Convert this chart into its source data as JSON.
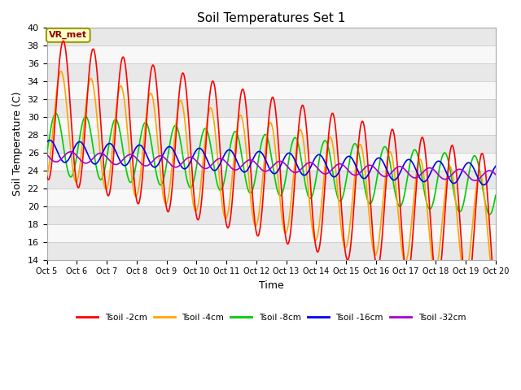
{
  "title": "Soil Temperatures Set 1",
  "xlabel": "Time",
  "ylabel": "Soil Temperature (C)",
  "ylim": [
    14,
    40
  ],
  "annotation_text": "VR_met",
  "x_tick_labels": [
    "Oct 5",
    "Oct 6",
    "Oct 7",
    "Oct 8",
    "Oct 9",
    "Oct 10",
    "Oct 11",
    "Oct 12",
    "Oct 13",
    "Oct 14",
    "Oct 15",
    "Oct 16",
    "Oct 17",
    "Oct 18",
    "Oct 19",
    "Oct 20"
  ],
  "series": [
    {
      "label": "Tsoil -2cm",
      "color": "#ff0000"
    },
    {
      "label": "Tsoil -4cm",
      "color": "#ffa500"
    },
    {
      "label": "Tsoil -8cm",
      "color": "#00cc00"
    },
    {
      "label": "Tsoil -16cm",
      "color": "#0000ee"
    },
    {
      "label": "Tsoil -32cm",
      "color": "#aa00cc"
    }
  ]
}
